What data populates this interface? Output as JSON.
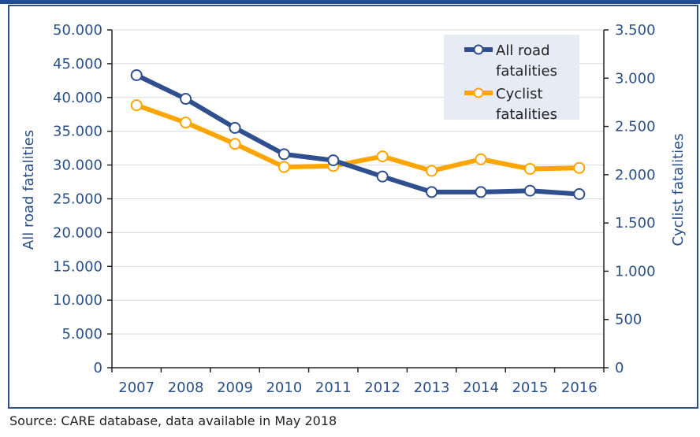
{
  "source_note": "Source: CARE database, data available in May 2018",
  "colors": {
    "road": "#2f4f8f",
    "cyclist": "#ffa500",
    "axis": "#2b4f87"
  },
  "chart_data": {
    "type": "line",
    "x": [
      "2007",
      "2008",
      "2009",
      "2010",
      "2011",
      "2012",
      "2013",
      "2014",
      "2015",
      "2016"
    ],
    "y_left": {
      "label": "All road fatalities",
      "range": [
        0,
        50000
      ],
      "ticks": [
        {
          "value": 0,
          "label": "0"
        },
        {
          "value": 5000,
          "label": "5.000"
        },
        {
          "value": 10000,
          "label": "10.000"
        },
        {
          "value": 15000,
          "label": "15.000"
        },
        {
          "value": 20000,
          "label": "20.000"
        },
        {
          "value": 25000,
          "label": "25.000"
        },
        {
          "value": 30000,
          "label": "30.000"
        },
        {
          "value": 35000,
          "label": "35.000"
        },
        {
          "value": 40000,
          "label": "40.000"
        },
        {
          "value": 45000,
          "label": "45.000"
        },
        {
          "value": 50000,
          "label": "50.000"
        }
      ]
    },
    "y_right": {
      "label": "Cyclist fatalities",
      "range": [
        0,
        3500
      ],
      "ticks": [
        {
          "value": 0,
          "label": "0"
        },
        {
          "value": 500,
          "label": "500"
        },
        {
          "value": 1000,
          "label": "1.000"
        },
        {
          "value": 1500,
          "label": "1.500"
        },
        {
          "value": 2000,
          "label": "2.000"
        },
        {
          "value": 2500,
          "label": "2.500"
        },
        {
          "value": 3000,
          "label": "3.000"
        },
        {
          "value": 3500,
          "label": "3.500"
        }
      ]
    },
    "series": [
      {
        "name": "All road fatalities",
        "axis": "left",
        "color": "#2f4f8f",
        "values": [
          43300,
          39800,
          35500,
          31600,
          30700,
          28300,
          26000,
          26000,
          26200,
          25700
        ]
      },
      {
        "name": "Cyclist fatalities",
        "axis": "right",
        "color": "#ffa500",
        "values": [
          2720,
          2540,
          2320,
          2080,
          2090,
          2190,
          2040,
          2160,
          2060,
          2070
        ]
      }
    ],
    "legend": {
      "placement": "top-right",
      "lines": [
        [
          "All road",
          "fatalities"
        ],
        [
          "Cyclist",
          "fatalities"
        ]
      ]
    },
    "grid": true
  }
}
